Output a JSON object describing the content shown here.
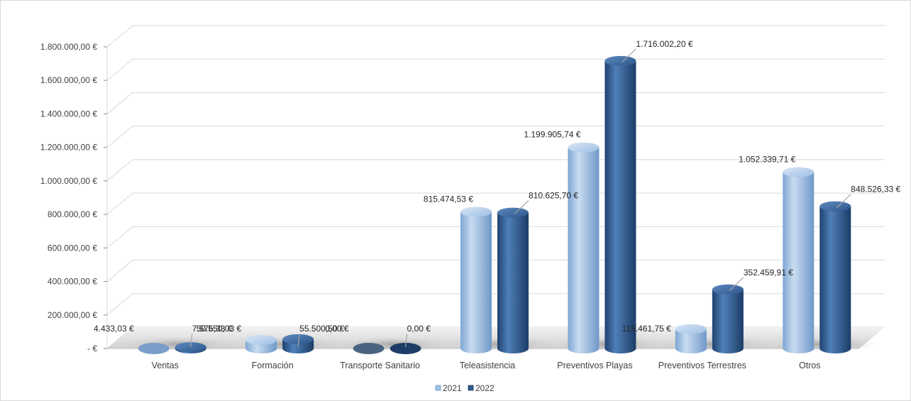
{
  "chart_data": {
    "type": "bar",
    "style": "3d-cylinder",
    "categories": [
      "Ventas",
      "Formación",
      "Transporte Sanitario",
      "Teleasistencia",
      "Preventivos Playas",
      "Preventivos Terrestres",
      "Otros"
    ],
    "series": [
      {
        "name": "2021",
        "color": "#9dc3e6",
        "values": [
          4433.03,
          50550.03,
          0,
          815474.53,
          1199905.74,
          115461.75,
          1052339.71
        ],
        "labels": [
          "4.433,03 €",
          "50.550,03 €",
          "0,00 €",
          "815.474,53 €",
          "1.199.905,74 €",
          "115.461,75 €",
          "1.052.339,71 €"
        ]
      },
      {
        "name": "2022",
        "color": "#2e5a8e",
        "values": [
          7576.33,
          55500.5,
          0,
          810625.7,
          1716002.2,
          352459.91,
          848526.33
        ],
        "labels": [
          "7.576,33 €",
          "55.500,50 €",
          "0,00 €",
          "810.625,70 €",
          "1.716.002,20 €",
          "352.459,91 €",
          "848.526,33 €"
        ]
      }
    ],
    "y_ticks": [
      {
        "value": 0,
        "label": "-   €"
      },
      {
        "value": 200000,
        "label": "200.000,00 €"
      },
      {
        "value": 400000,
        "label": "400.000,00 €"
      },
      {
        "value": 600000,
        "label": "600.000,00 €"
      },
      {
        "value": 800000,
        "label": "800.000,00 €"
      },
      {
        "value": 1000000,
        "label": "1.000.000,00 €"
      },
      {
        "value": 1200000,
        "label": "1.200.000,00 €"
      },
      {
        "value": 1400000,
        "label": "1.400.000,00 €"
      },
      {
        "value": 1600000,
        "label": "1.600.000,00 €"
      },
      {
        "value": 1800000,
        "label": "1.800.000,00 €"
      }
    ],
    "ylim": [
      0,
      1800000
    ],
    "grid": true,
    "legend_position": "bottom",
    "title": "",
    "xlabel": "",
    "ylabel": ""
  }
}
